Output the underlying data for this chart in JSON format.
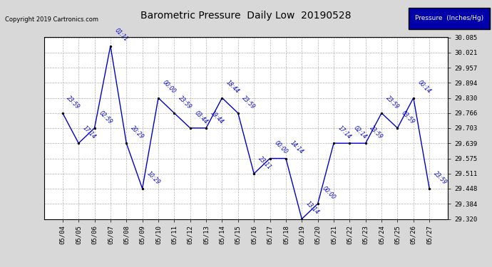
{
  "title": "Barometric Pressure  Daily Low  20190528",
  "ylabel": "Pressure  (Inches/Hg)",
  "copyright": "Copyright 2019 Cartronics.com",
  "dates": [
    "05/04",
    "05/05",
    "05/06",
    "05/07",
    "05/08",
    "05/09",
    "05/10",
    "05/11",
    "05/12",
    "05/13",
    "05/14",
    "05/15",
    "05/16",
    "05/17",
    "05/18",
    "05/19",
    "05/20",
    "05/21",
    "05/22",
    "05/23",
    "05/24",
    "05/25",
    "05/26",
    "05/27"
  ],
  "values": [
    29.766,
    29.639,
    29.703,
    30.049,
    29.639,
    29.448,
    29.83,
    29.766,
    29.703,
    29.703,
    29.83,
    29.766,
    29.511,
    29.575,
    29.575,
    29.32,
    29.384,
    29.639,
    29.639,
    29.639,
    29.766,
    29.703,
    29.83,
    29.448
  ],
  "times": [
    "23:59",
    "17:14",
    "02:59",
    "01:11",
    "20:29",
    "10:29",
    "00:00",
    "23:59",
    "03:44",
    "19:44",
    "18:44",
    "23:59",
    "23:11",
    "00:00",
    "14:14",
    "13:14",
    "00:00",
    "17:14",
    "02:14",
    "23:59",
    "23:59",
    "03:59",
    "00:14",
    "23:59"
  ],
  "ylim_min": 29.32,
  "ylim_max": 30.085,
  "yticks": [
    29.32,
    29.384,
    29.448,
    29.511,
    29.575,
    29.639,
    29.703,
    29.766,
    29.83,
    29.894,
    29.957,
    30.021,
    30.085
  ],
  "line_color": "#0000cc",
  "marker_color": "#000000",
  "bg_color": "#d8d8d8",
  "plot_bg_color": "#ffffff",
  "grid_color": "#b0b0b0",
  "title_color": "#000000",
  "label_color": "#0000cc",
  "legend_bg": "#0000aa",
  "legend_text": "#ffffff",
  "figw": 6.9,
  "figh": 3.75,
  "dpi": 100
}
